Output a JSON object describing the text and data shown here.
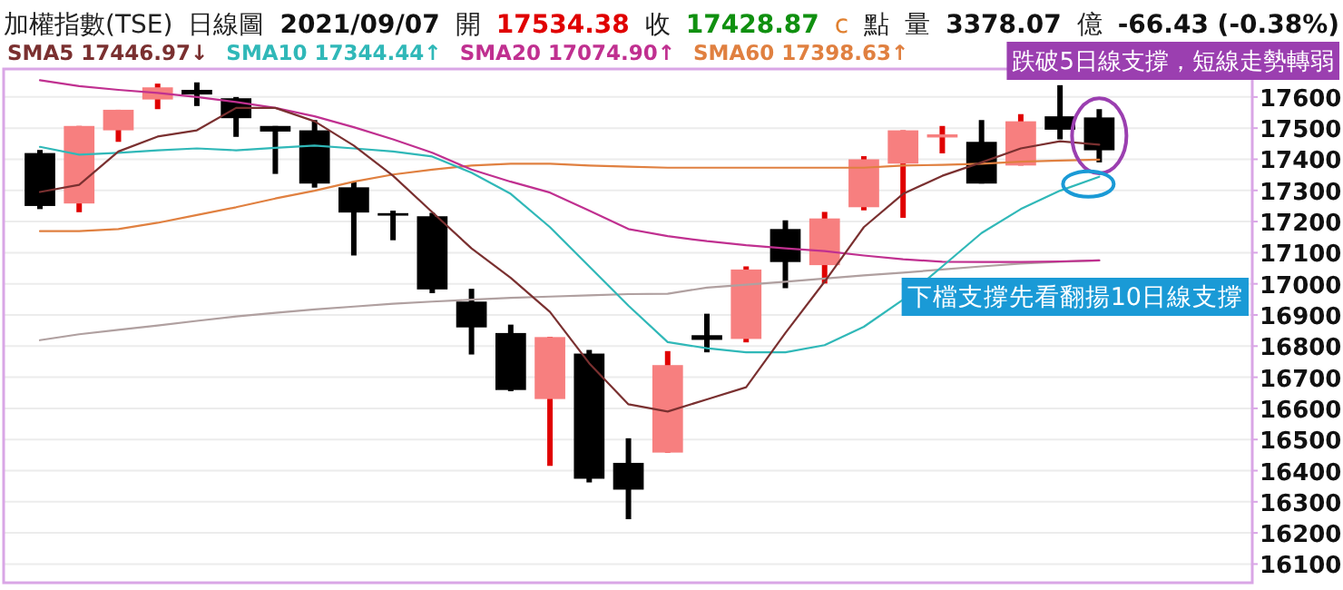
{
  "chart_data": {
    "type": "candlestick",
    "title": "加權指數(TSE)",
    "categories": [
      null,
      null,
      null,
      null,
      null,
      null,
      null,
      null,
      null,
      null,
      null,
      null,
      null,
      null,
      null,
      null,
      null,
      null,
      null,
      null,
      null,
      null,
      null,
      null,
      null,
      null,
      null,
      null
    ],
    "ohlc": [
      [
        17420,
        17430,
        17240,
        17250
      ],
      [
        17258,
        17507,
        17230,
        17507
      ],
      [
        17493,
        17559,
        17456,
        17559
      ],
      [
        17592,
        17643,
        17561,
        17631
      ],
      [
        17623,
        17647,
        17571,
        17608
      ],
      [
        17596,
        17600,
        17472,
        17532
      ],
      [
        17507,
        17507,
        17353,
        17489
      ],
      [
        17493,
        17526,
        17309,
        17322
      ],
      [
        17310,
        17328,
        17091,
        17229
      ],
      [
        17227,
        17235,
        17140,
        17219
      ],
      [
        17217,
        17228,
        16970,
        16982
      ],
      [
        16943,
        16984,
        16773,
        16860
      ],
      [
        16842,
        16869,
        16655,
        16659
      ],
      [
        16630,
        16829,
        16415,
        16829
      ],
      [
        16776,
        16788,
        16362,
        16374
      ],
      [
        16425,
        16504,
        16244,
        16339
      ],
      [
        16458,
        16784,
        16458,
        16739
      ],
      [
        16835,
        16904,
        16780,
        16820
      ],
      [
        16823,
        17056,
        16812,
        17046
      ],
      [
        17176,
        17204,
        16986,
        17070
      ],
      [
        17060,
        17231,
        17001,
        17210
      ],
      [
        17246,
        17410,
        17236,
        17400
      ],
      [
        17386,
        17493,
        17212,
        17493
      ],
      [
        17470,
        17507,
        17419,
        17480
      ],
      [
        17456,
        17526,
        17322,
        17322
      ],
      [
        17380,
        17545,
        17380,
        17522
      ],
      [
        17538,
        17638,
        17464,
        17495
      ],
      [
        17534.38,
        17561,
        17390,
        17428.87
      ]
    ],
    "series": [
      {
        "type": "line",
        "color": "#b0a0a0",
        "values": [
          16819,
          16838,
          16852,
          16866,
          16881,
          16895,
          16907,
          16918,
          16927,
          16936,
          16943,
          16949,
          16955,
          16959,
          16963,
          16967,
          16968,
          16988,
          16997,
          17007,
          17017,
          17027,
          17036,
          17046,
          17056,
          17065,
          17071,
          17075
        ]
      },
      {
        "type": "line",
        "name": "SMA60 17398.63↑",
        "color": "#e08040",
        "values": [
          17169,
          17169,
          17176,
          17196,
          17221,
          17246,
          17274,
          17299,
          17328,
          17351,
          17367,
          17380,
          17386,
          17386,
          17380,
          17376,
          17373,
          17373,
          17373,
          17373,
          17373,
          17373,
          17380,
          17382,
          17386,
          17392,
          17396,
          17399
        ]
      },
      {
        "type": "line",
        "name": "SMA20 17074.90↑",
        "color": "#c03090",
        "values": [
          17654,
          17635,
          17623,
          17613,
          17600,
          17584,
          17565,
          17538,
          17503,
          17464,
          17421,
          17367,
          17328,
          17293,
          17235,
          17176,
          17153,
          17137,
          17124,
          17114,
          17105,
          17091,
          17079,
          17071,
          17070,
          17070,
          17072,
          17075
        ]
      },
      {
        "type": "line",
        "name": "SMA10 17344.44↑",
        "color": "#30b8b8",
        "values": [
          17440,
          17415,
          17421,
          17429,
          17435,
          17429,
          17437,
          17444,
          17435,
          17425,
          17409,
          17357,
          17289,
          17182,
          17056,
          16930,
          16813,
          16793,
          16780,
          16780,
          16803,
          16862,
          16949,
          17056,
          17163,
          17240,
          17299,
          17344
        ]
      },
      {
        "type": "line",
        "name": "SMA5 17446.97↓",
        "color": "#7a3030",
        "values": [
          17295,
          17318,
          17425,
          17473,
          17493,
          17565,
          17565,
          17522,
          17444,
          17347,
          17230,
          17114,
          17019,
          16910,
          16745,
          16613,
          16590,
          16629,
          16668,
          16842,
          17007,
          17182,
          17289,
          17347,
          17390,
          17435,
          17458,
          17447
        ]
      }
    ],
    "ylim": [
      16040,
      17690
    ],
    "yticks": [
      16100,
      16200,
      16300,
      16400,
      16500,
      16600,
      16700,
      16800,
      16900,
      17000,
      17100,
      17200,
      17300,
      17400,
      17500,
      17600
    ],
    "grid": "y",
    "legend": "top left",
    "annotations": [
      "日線圖",
      "2021/09/07",
      "開",
      "17534.38",
      "收",
      "17428.87",
      "c",
      "點",
      "量",
      "3378.07",
      "億",
      "-66.43 (-0.38%)",
      "跌破5日線支撐，短線走勢轉弱",
      "下檔支撐先看翻揚10日線支撐"
    ]
  }
}
